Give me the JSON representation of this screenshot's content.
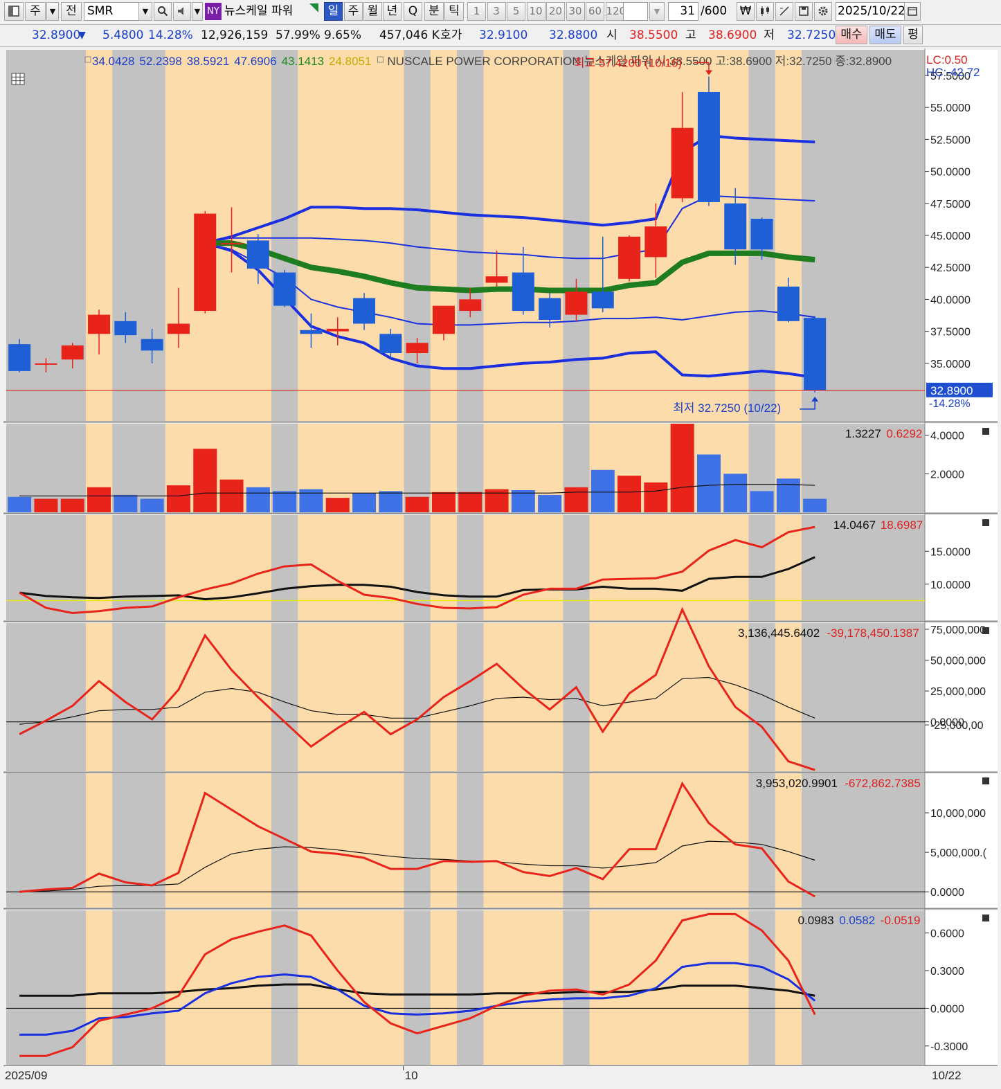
{
  "toolbar": {
    "market_label": "주",
    "prev_label": "전",
    "symbol": "SMR",
    "exchange_badge": "NY",
    "stock_name_kr": "뉴스케일 파워",
    "period_buttons": [
      "일",
      "주",
      "월",
      "년",
      "Q"
    ],
    "active_period": "일",
    "minute_label": "분",
    "tick_label": "틱",
    "interval_buttons": [
      "1",
      "3",
      "5",
      "10",
      "20",
      "30",
      "60",
      "120"
    ],
    "count_value": "31",
    "count_total": "/600",
    "date_value": "2025/10/22"
  },
  "quote": {
    "price": "32.8900",
    "change_arrow": "▼",
    "change": "5.4800",
    "change_pct": "14.28%",
    "volume": "12,926,159",
    "pct1": "57.99%",
    "pct2": "9.65%",
    "amount": "457,046 K",
    "bid_label": "호가",
    "ask_price": "32.9100",
    "bid_price": "32.8800",
    "open_label": "시",
    "open": "38.5500",
    "high_label": "고",
    "high": "38.6900",
    "low_label": "저",
    "low": "32.7250",
    "buy_button": "매수",
    "sell_button": "매도",
    "flat_button": "평"
  },
  "chart_data": {
    "type": "candlestick",
    "title": "NUSCALE POWER CORPORATION  뉴스케일 파워 시:38.5500 고:38.6900 저:32.7250 종:32.8900",
    "legend_values": [
      {
        "text": "34.0428",
        "color": "#1b3ec8"
      },
      {
        "text": "52.2398",
        "color": "#1b3ec8"
      },
      {
        "text": "38.5921",
        "color": "#1b3ec8"
      },
      {
        "text": "47.6906",
        "color": "#1b3ec8"
      },
      {
        "text": "43.1413",
        "color": "#1e8a1e"
      },
      {
        "text": "24.8051",
        "color": "#c8a800"
      }
    ],
    "lc_label": "LC:0.50",
    "hc_label": "HC:-42.72",
    "x_labels": [
      "2025/09",
      "10",
      "10/22"
    ],
    "highest_annotation": "최고 57.4200 (10/16)",
    "lowest_annotation": "최저 32.7250 (10/22)",
    "last_price_label": "32.8900",
    "last_change_label": "-14.28%",
    "price_axis": {
      "ylim": [
        30.5,
        59.5
      ],
      "ticks": [
        "57.5000",
        "55.0000",
        "52.5000",
        "50.0000",
        "47.5000",
        "45.0000",
        "42.5000",
        "40.0000",
        "37.5000",
        "35.0000"
      ]
    },
    "shading": [
      "gray",
      "gray",
      "gray",
      "orange",
      "gray",
      "gray",
      "orange",
      "orange",
      "orange",
      "orange",
      "gray",
      "orange",
      "orange",
      "orange",
      "orange",
      "gray",
      "orange",
      "gray",
      "orange",
      "orange",
      "orange",
      "gray",
      "orange",
      "orange",
      "orange",
      "orange",
      "orange",
      "orange",
      "gray",
      "orange",
      "gray"
    ],
    "candles": [
      {
        "o": 36.5,
        "h": 36.9,
        "l": 34.3,
        "c": 34.4
      },
      {
        "o": 35.0,
        "h": 35.4,
        "l": 34.3,
        "c": 35.0
      },
      {
        "o": 35.3,
        "h": 36.6,
        "l": 34.6,
        "c": 36.4
      },
      {
        "o": 37.3,
        "h": 39.2,
        "l": 35.7,
        "c": 38.8
      },
      {
        "o": 38.3,
        "h": 39.0,
        "l": 36.6,
        "c": 37.2
      },
      {
        "o": 36.9,
        "h": 37.7,
        "l": 35.0,
        "c": 36.0
      },
      {
        "o": 37.3,
        "h": 40.9,
        "l": 36.2,
        "c": 38.1
      },
      {
        "o": 39.1,
        "h": 46.9,
        "l": 38.9,
        "c": 46.7
      },
      {
        "o": 44.4,
        "h": 47.2,
        "l": 42.1,
        "c": 44.4
      },
      {
        "o": 44.6,
        "h": 45.1,
        "l": 41.2,
        "c": 42.4
      },
      {
        "o": 42.1,
        "h": 42.3,
        "l": 39.4,
        "c": 39.5
      },
      {
        "o": 37.6,
        "h": 38.9,
        "l": 36.2,
        "c": 37.3
      },
      {
        "o": 37.5,
        "h": 38.6,
        "l": 36.4,
        "c": 37.7
      },
      {
        "o": 40.1,
        "h": 40.5,
        "l": 37.6,
        "c": 38.1
      },
      {
        "o": 37.3,
        "h": 37.7,
        "l": 35.4,
        "c": 35.8
      },
      {
        "o": 35.8,
        "h": 37.0,
        "l": 35.0,
        "c": 36.6
      },
      {
        "o": 37.3,
        "h": 39.3,
        "l": 36.8,
        "c": 39.5
      },
      {
        "o": 39.1,
        "h": 40.9,
        "l": 38.6,
        "c": 40.0
      },
      {
        "o": 41.3,
        "h": 43.8,
        "l": 41.0,
        "c": 41.8
      },
      {
        "o": 42.1,
        "h": 44.1,
        "l": 38.8,
        "c": 39.1
      },
      {
        "o": 40.1,
        "h": 40.5,
        "l": 37.8,
        "c": 38.4
      },
      {
        "o": 38.8,
        "h": 41.6,
        "l": 38.3,
        "c": 40.6
      },
      {
        "o": 40.6,
        "h": 44.9,
        "l": 39.0,
        "c": 39.3
      },
      {
        "o": 41.6,
        "h": 45.0,
        "l": 41.4,
        "c": 44.9
      },
      {
        "o": 43.3,
        "h": 47.5,
        "l": 41.7,
        "c": 45.7
      },
      {
        "o": 47.9,
        "h": 56.2,
        "l": 47.6,
        "c": 53.4
      },
      {
        "o": 56.2,
        "h": 57.42,
        "l": 47.3,
        "c": 47.6
      },
      {
        "o": 47.5,
        "h": 48.7,
        "l": 42.7,
        "c": 43.9
      },
      {
        "o": 46.3,
        "h": 46.4,
        "l": 43.1,
        "c": 43.9
      },
      {
        "o": 41.0,
        "h": 41.7,
        "l": 38.2,
        "c": 38.3
      },
      {
        "o": 38.55,
        "h": 38.69,
        "l": 32.725,
        "c": 32.89
      }
    ],
    "bollinger_outer_upper": [
      [
        7,
        44.4
      ],
      [
        8,
        44.9
      ],
      [
        9,
        45.6
      ],
      [
        10,
        46.3
      ],
      [
        11,
        47.2
      ],
      [
        12,
        47.2
      ],
      [
        13,
        47.1
      ],
      [
        14,
        47.1
      ],
      [
        15,
        47.0
      ],
      [
        16,
        46.8
      ],
      [
        17,
        46.6
      ],
      [
        18,
        46.5
      ],
      [
        19,
        46.4
      ],
      [
        20,
        46.2
      ],
      [
        21,
        46.0
      ],
      [
        22,
        45.8
      ],
      [
        23,
        46.0
      ],
      [
        24,
        46.3
      ],
      [
        25,
        51.5
      ],
      [
        26,
        52.8
      ],
      [
        27,
        52.6
      ],
      [
        28,
        52.5
      ],
      [
        29,
        52.4
      ],
      [
        30,
        52.3
      ]
    ],
    "bollinger_outer_lower": [
      [
        7,
        44.4
      ],
      [
        8,
        43.8
      ],
      [
        9,
        42.3
      ],
      [
        10,
        40.1
      ],
      [
        11,
        37.9
      ],
      [
        12,
        37.1
      ],
      [
        13,
        36.6
      ],
      [
        14,
        35.4
      ],
      [
        15,
        34.8
      ],
      [
        16,
        34.6
      ],
      [
        17,
        34.6
      ],
      [
        18,
        34.8
      ],
      [
        19,
        35.0
      ],
      [
        20,
        35.1
      ],
      [
        21,
        35.3
      ],
      [
        22,
        35.4
      ],
      [
        23,
        35.8
      ],
      [
        24,
        35.9
      ],
      [
        25,
        34.1
      ],
      [
        26,
        34.0
      ],
      [
        27,
        34.2
      ],
      [
        28,
        34.4
      ],
      [
        29,
        34.2
      ],
      [
        30,
        33.9
      ]
    ],
    "bollinger_inner_upper": [
      [
        7,
        44.4
      ],
      [
        8,
        44.8
      ],
      [
        9,
        44.8
      ],
      [
        10,
        44.8
      ],
      [
        11,
        44.8
      ],
      [
        12,
        44.7
      ],
      [
        13,
        44.6
      ],
      [
        14,
        44.4
      ],
      [
        15,
        44.1
      ],
      [
        16,
        43.9
      ],
      [
        17,
        43.7
      ],
      [
        18,
        43.6
      ],
      [
        19,
        43.5
      ],
      [
        20,
        43.3
      ],
      [
        21,
        43.2
      ],
      [
        22,
        43.2
      ],
      [
        23,
        43.6
      ],
      [
        24,
        43.9
      ],
      [
        25,
        47.1
      ],
      [
        26,
        48.1
      ],
      [
        27,
        48.0
      ],
      [
        28,
        47.9
      ],
      [
        29,
        47.8
      ],
      [
        30,
        47.7
      ]
    ],
    "bollinger_inner_lower": [
      [
        7,
        44.4
      ],
      [
        8,
        43.9
      ],
      [
        9,
        42.8
      ],
      [
        10,
        41.7
      ],
      [
        11,
        40.0
      ],
      [
        12,
        39.4
      ],
      [
        13,
        39.0
      ],
      [
        14,
        38.6
      ],
      [
        15,
        38.1
      ],
      [
        16,
        38.0
      ],
      [
        17,
        38.0
      ],
      [
        18,
        38.1
      ],
      [
        19,
        38.2
      ],
      [
        20,
        38.2
      ],
      [
        21,
        38.3
      ],
      [
        22,
        38.5
      ],
      [
        23,
        38.5
      ],
      [
        24,
        38.6
      ],
      [
        25,
        38.4
      ],
      [
        26,
        38.7
      ],
      [
        27,
        39.0
      ],
      [
        28,
        39.1
      ],
      [
        29,
        38.9
      ],
      [
        30,
        38.6
      ]
    ],
    "ma_green": [
      [
        7,
        44.4
      ],
      [
        8,
        44.4
      ],
      [
        9,
        43.9
      ],
      [
        10,
        43.2
      ],
      [
        11,
        42.5
      ],
      [
        12,
        42.2
      ],
      [
        13,
        41.8
      ],
      [
        14,
        41.3
      ],
      [
        15,
        40.9
      ],
      [
        16,
        40.8
      ],
      [
        17,
        40.7
      ],
      [
        18,
        40.8
      ],
      [
        19,
        40.8
      ],
      [
        20,
        40.7
      ],
      [
        21,
        40.7
      ],
      [
        22,
        40.7
      ],
      [
        23,
        41.1
      ],
      [
        24,
        41.3
      ],
      [
        25,
        42.9
      ],
      [
        26,
        43.6
      ],
      [
        27,
        43.6
      ],
      [
        28,
        43.6
      ],
      [
        29,
        43.3
      ],
      [
        30,
        43.1
      ]
    ],
    "volume_panel": {
      "header_values": [
        {
          "text": "1.3227",
          "color": "#111"
        },
        {
          "text": "0.6292",
          "color": "#e02020"
        }
      ],
      "ticks": [
        "4.0000",
        "2.0000"
      ],
      "ylim": [
        0,
        4.6
      ],
      "bars": [
        0.8,
        0.7,
        0.7,
        1.3,
        0.9,
        0.7,
        1.4,
        3.3,
        1.7,
        1.3,
        1.1,
        1.2,
        0.75,
        1.0,
        1.1,
        0.8,
        1.05,
        1.05,
        1.2,
        1.15,
        0.9,
        1.3,
        2.2,
        1.9,
        1.55,
        4.6,
        3.0,
        2.0,
        1.1,
        1.75,
        0.7
      ],
      "avg": [
        0.85,
        0.85,
        0.85,
        0.85,
        0.85,
        0.85,
        0.85,
        1.0,
        1.0,
        1.0,
        1.0,
        1.0,
        1.0,
        1.0,
        1.0,
        1.0,
        1.0,
        1.0,
        1.0,
        1.0,
        1.0,
        1.05,
        1.05,
        1.05,
        1.1,
        1.3,
        1.4,
        1.45,
        1.45,
        1.45,
        1.4
      ]
    },
    "panel2": {
      "header_values": [
        {
          "text": "14.0467",
          "color": "#111"
        },
        {
          "text": "18.6987",
          "color": "#e02020"
        }
      ],
      "ticks": [
        "15.0000",
        "10.0000"
      ],
      "ylim": [
        4.5,
        20.5
      ],
      "hline": 7.5,
      "red": [
        8.7,
        6.4,
        5.6,
        5.9,
        6.4,
        6.6,
        8.0,
        9.2,
        10.1,
        11.6,
        12.7,
        13.0,
        10.5,
        8.4,
        7.9,
        7.0,
        6.4,
        6.3,
        6.5,
        8.4,
        9.3,
        9.3,
        10.7,
        10.8,
        10.9,
        11.9,
        15.1,
        16.7,
        15.6,
        17.9,
        18.7
      ],
      "black": [
        8.7,
        8.2,
        8.0,
        7.9,
        8.1,
        8.2,
        8.3,
        7.7,
        8.0,
        8.6,
        9.3,
        9.7,
        9.9,
        9.9,
        9.6,
        8.8,
        8.3,
        8.1,
        8.1,
        9.1,
        9.2,
        9.2,
        9.6,
        9.3,
        9.3,
        9.0,
        10.8,
        11.1,
        11.1,
        12.3,
        14.1
      ]
    },
    "panel3": {
      "header_values": [
        {
          "text": "3,136,445.6402",
          "color": "#111"
        },
        {
          "text": "-39,178,450.1387",
          "color": "#e02020"
        }
      ],
      "ticks": [
        "75,000,000",
        "50,000,000",
        "25,000,000",
        "0.0000",
        "-25,000,00"
      ],
      "ylim": [
        -40000000,
        80000000
      ],
      "zero": 0,
      "red": [
        -10000000,
        1000000,
        13000000,
        33000000,
        16000000,
        2000000,
        26000000,
        70000000,
        42000000,
        20000000,
        0,
        -20000000,
        -5000000,
        8000000,
        -10000000,
        2000000,
        20000000,
        33000000,
        47000000,
        27000000,
        10000000,
        28000000,
        -8000000,
        23000000,
        38000000,
        91000000,
        45000000,
        12000000,
        -4000000,
        -32000000,
        -39000000
      ],
      "black": [
        -2000000,
        0,
        4000000,
        9000000,
        10000000,
        10000000,
        12000000,
        24000000,
        27000000,
        24000000,
        16000000,
        9000000,
        6000000,
        6000000,
        3000000,
        3000000,
        8000000,
        13000000,
        19000000,
        20000000,
        18000000,
        19000000,
        13000000,
        16000000,
        19000000,
        35000000,
        36000000,
        30000000,
        22000000,
        12000000,
        3000000
      ]
    },
    "panel4": {
      "header_values": [
        {
          "text": "3,953,020.9901",
          "color": "#111"
        },
        {
          "text": "-672,862.7385",
          "color": "#e02020"
        }
      ],
      "ticks": [
        "10,000,000",
        "5,000,000.(",
        "0.0000"
      ],
      "ylim": [
        -2000000,
        15000000
      ],
      "zero": 0,
      "red": [
        0,
        300000,
        500000,
        2300000,
        1200000,
        800000,
        2400000,
        12500000,
        10400000,
        8300000,
        6700000,
        5100000,
        4800000,
        4300000,
        2900000,
        2900000,
        3900000,
        3800000,
        3900000,
        2500000,
        2000000,
        3000000,
        1600000,
        5400000,
        5400000,
        13700000,
        8700000,
        6000000,
        5500000,
        1300000,
        -600000
      ],
      "black": [
        0,
        100000,
        300000,
        700000,
        800000,
        800000,
        1000000,
        3100000,
        4800000,
        5400000,
        5700000,
        5600000,
        5300000,
        4900000,
        4500000,
        4200000,
        4100000,
        3900000,
        3800000,
        3500000,
        3300000,
        3300000,
        3000000,
        3300000,
        3700000,
        5800000,
        6400000,
        6300000,
        6000000,
        5100000,
        4000000
      ]
    },
    "panel5": {
      "header_values": [
        {
          "text": "0.0983",
          "color": "#111"
        },
        {
          "text": "0.0582",
          "color": "#1b3ec8"
        },
        {
          "text": "-0.0519",
          "color": "#e02020"
        }
      ],
      "ticks": [
        "0.6000",
        "0.3000",
        "0.0000",
        "-0.3000"
      ],
      "ylim": [
        -0.45,
        0.78
      ],
      "zero": 0,
      "red": [
        -0.38,
        -0.38,
        -0.31,
        -0.1,
        -0.05,
        0.0,
        0.1,
        0.43,
        0.55,
        0.61,
        0.66,
        0.58,
        0.3,
        0.05,
        -0.12,
        -0.2,
        -0.14,
        -0.08,
        0.02,
        0.1,
        0.14,
        0.15,
        0.11,
        0.19,
        0.38,
        0.7,
        0.75,
        0.75,
        0.62,
        0.38,
        -0.05
      ],
      "blue": [
        -0.21,
        -0.21,
        -0.18,
        -0.08,
        -0.07,
        -0.04,
        -0.02,
        0.12,
        0.2,
        0.25,
        0.27,
        0.25,
        0.15,
        0.02,
        -0.04,
        -0.05,
        -0.04,
        -0.02,
        0.02,
        0.05,
        0.07,
        0.08,
        0.08,
        0.1,
        0.16,
        0.33,
        0.36,
        0.36,
        0.33,
        0.23,
        0.06
      ],
      "black": [
        0.1,
        0.1,
        0.1,
        0.12,
        0.12,
        0.12,
        0.13,
        0.15,
        0.16,
        0.18,
        0.19,
        0.19,
        0.15,
        0.12,
        0.11,
        0.11,
        0.11,
        0.11,
        0.12,
        0.12,
        0.12,
        0.13,
        0.13,
        0.13,
        0.15,
        0.18,
        0.18,
        0.18,
        0.16,
        0.14,
        0.1
      ]
    }
  }
}
